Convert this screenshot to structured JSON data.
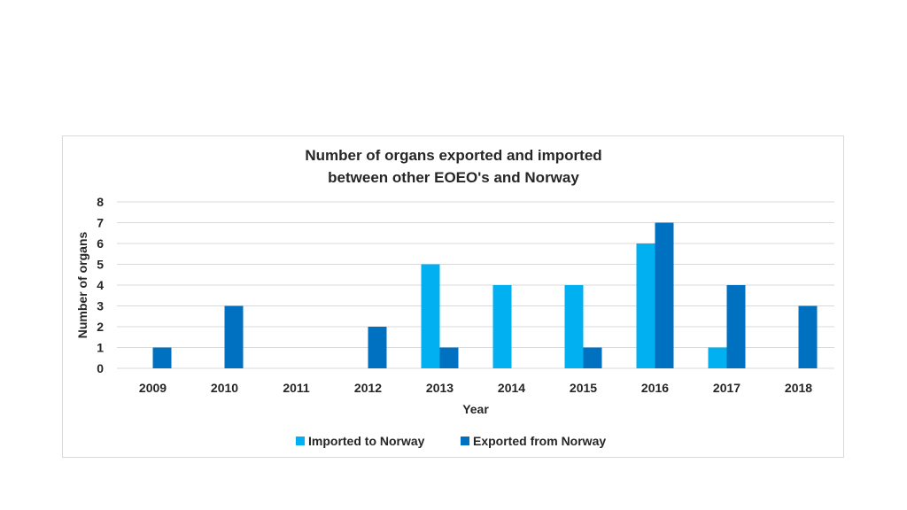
{
  "chart_data": {
    "type": "bar",
    "title": [
      "Number of organs exported and imported",
      "between other EOEO's and Norway"
    ],
    "xlabel": "Year",
    "ylabel": "Number of organs",
    "ylim": [
      0,
      8
    ],
    "yticks": [
      "0",
      "1",
      "2",
      "3",
      "4",
      "5",
      "6",
      "7",
      "8"
    ],
    "categories": [
      "2009",
      "2010",
      "2011",
      "2012",
      "2013",
      "2014",
      "2015",
      "2016",
      "2017",
      "2018"
    ],
    "series": [
      {
        "name": "Imported to Norway",
        "color": "#00b0f0",
        "values": [
          0,
          0,
          0,
          0,
          5,
          4,
          4,
          6,
          1,
          0
        ]
      },
      {
        "name": "Exported from Norway",
        "color": "#0070c0",
        "values": [
          1,
          3,
          0,
          2,
          1,
          0,
          1,
          7,
          4,
          3
        ]
      }
    ],
    "legend_position": "bottom",
    "grid": true
  }
}
